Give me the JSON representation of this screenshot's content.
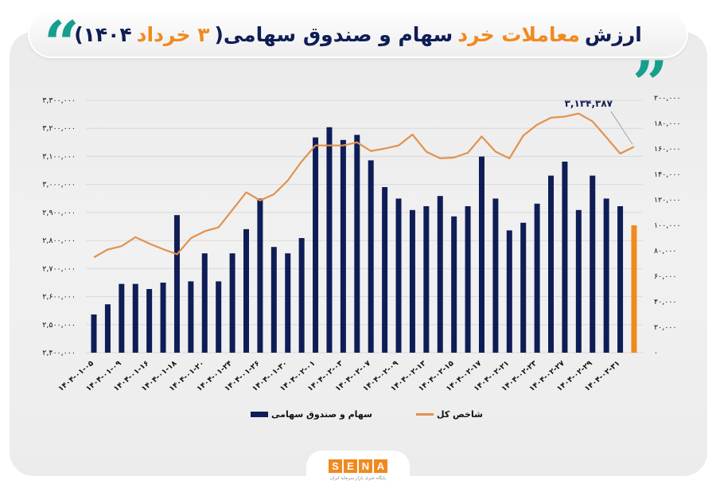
{
  "header": {
    "title_parts": [
      {
        "text": "ارزش",
        "color": "navy"
      },
      {
        "text": "معاملات خرد",
        "color": "orange"
      },
      {
        "text": "سهام و صندوق سهامی(",
        "color": "navy"
      },
      {
        "text": "۳ خرداد",
        "color": "orange"
      },
      {
        "text": "۱۴۰۴)",
        "color": "navy"
      }
    ],
    "quote_open": "“",
    "quote_close": "”"
  },
  "colors": {
    "navy": "#0f1d56",
    "orange": "#f08a1e",
    "line": "#e0924f",
    "teal": "#179e8d",
    "grid": "#d9d9d9"
  },
  "legend": {
    "bars_label": "سهام و صندوق سهامی",
    "line_label": "شاخص کل"
  },
  "footer": {
    "logo_letters": [
      "S",
      "E",
      "N",
      "A"
    ],
    "logo_subtitle": "پایگاه خبری بازار سرمایه ایران"
  },
  "chart_data": {
    "type": "bar+line",
    "title": "ارزش معاملات خرد سهام و صندوق سهامی (۳ خرداد ۱۴۰۴)",
    "xlabel": "",
    "ylabel_left": "شاخص کل",
    "ylabel_right": "ارزش معاملات خرد",
    "left_axis": {
      "ylim": [
        2400000,
        3300000
      ],
      "ticks": [
        "۲,۴۰۰,۰۰۰",
        "۲,۵۰۰,۰۰۰",
        "۲,۶۰۰,۰۰۰",
        "۲,۷۰۰,۰۰۰",
        "۲,۸۰۰,۰۰۰",
        "۲,۹۰۰,۰۰۰",
        "۳,۰۰۰,۰۰۰",
        "۳,۱۰۰,۰۰۰",
        "۳,۲۰۰,۰۰۰",
        "۳,۳۰۰,۰۰۰"
      ]
    },
    "right_axis": {
      "ylim": [
        0,
        200000
      ],
      "ticks": [
        "۰",
        "۲۰,۰۰۰",
        "۴۰,۰۰۰",
        "۶۰,۰۰۰",
        "۸۰,۰۰۰",
        "۱۰۰,۰۰۰",
        "۱۲۰,۰۰۰",
        "۱۴۰,۰۰۰",
        "۱۶۰,۰۰۰",
        "۱۸۰,۰۰۰",
        "۲۰۰,۰۰۰"
      ]
    },
    "x_tick_labels": [
      "۱۴۰۴-۰۱-۰۵",
      "۱۴۰۴-۰۱-۰۹",
      "۱۴۰۴-۰۱-۱۶",
      "۱۴۰۴-۰۱-۱۸",
      "۱۴۰۴-۰۱-۲۰",
      "۱۴۰۴-۰۱-۲۴",
      "۱۴۰۴-۰۱-۲۶",
      "۱۴۰۴-۰۱-۳۰",
      "۱۴۰۴-۰۲-۰۱",
      "۱۴۰۴-۰۲-۰۳",
      "۱۴۰۴-۰۲-۰۷",
      "۱۴۰۴-۰۲-۰۹",
      "۱۴۰۴-۰۲-۱۳",
      "۱۴۰۴-۰۲-۱۵",
      "۱۴۰۴-۰۲-۱۷",
      "۱۴۰۴-۰۲-۲۱",
      "۱۴۰۴-۰۲-۲۳",
      "۱۴۰۴-۰۲-۲۷",
      "۱۴۰۴-۰۲-۲۹",
      "۱۴۰۴-۰۲-۳۱"
    ],
    "x_tick_every": 2,
    "grid": true,
    "legend_position": "bottom",
    "series": [
      {
        "name": "سهام و صندوق سهامی",
        "type": "bar",
        "axis": "right",
        "color": "#0f1d56",
        "last_color": "#f08a1e",
        "values": [
          30000,
          38000,
          54000,
          54000,
          50000,
          55000,
          108000,
          56000,
          78000,
          56000,
          78000,
          97000,
          121000,
          83000,
          78000,
          90000,
          169000,
          177000,
          167000,
          171000,
          151000,
          130000,
          121000,
          112000,
          115000,
          123000,
          107000,
          115000,
          154000,
          121000,
          96000,
          102000,
          117000,
          139000,
          150000,
          112000,
          139000,
          121000,
          115000,
          100000
        ]
      },
      {
        "name": "شاخص کل",
        "type": "line",
        "axis": "left",
        "color": "#e0924f",
        "values": [
          2740000,
          2768000,
          2780000,
          2812000,
          2789000,
          2769000,
          2751000,
          2808000,
          2833000,
          2847000,
          2909000,
          2972000,
          2943000,
          2965000,
          3014000,
          3082000,
          3139000,
          3139000,
          3139000,
          3150000,
          3119000,
          3128000,
          3139000,
          3178000,
          3117000,
          3093000,
          3096000,
          3113000,
          3171000,
          3117000,
          3093000,
          3174000,
          3213000,
          3238000,
          3242000,
          3253000,
          3225000,
          3168000,
          3110000,
          3134387
        ]
      }
    ],
    "annotations": [
      {
        "text": "۳,۱۳۴,۳۸۷",
        "point_index": 39,
        "series": "شاخص کل"
      }
    ]
  }
}
